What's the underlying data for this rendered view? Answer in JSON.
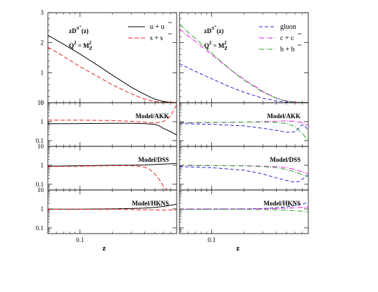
{
  "chart_data": {
    "type": "line",
    "xlabel": "z",
    "x_scale": "log",
    "xlim": [
      0.05,
      0.8
    ],
    "x_tick_labels": [
      "0.1"
    ],
    "columns": [
      {
        "id": "left",
        "top_panel": {
          "ylim": [
            0,
            3
          ],
          "y_tick_labels": [
            "0",
            "1",
            "2",
            "3"
          ],
          "annotation_line1": "zD^{π⁺}(z)",
          "annotation_main": "zD",
          "annotation_sup": "π",
          "annotation_supsup": "+",
          "annotation_arg": "(z)",
          "annotation_q_base": "Q",
          "annotation_q_exp": "2",
          "annotation_q_eq": " = M",
          "annotation_q_sub": "Z",
          "annotation_q_exp2": "2",
          "series": [
            {
              "name": "u + ū",
              "name_base": "u + u",
              "name_bar": "u",
              "color": "#000000",
              "dash": "",
              "x": [
                0.05,
                0.07,
                0.1,
                0.15,
                0.2,
                0.3,
                0.4,
                0.5,
                0.6,
                0.7,
                0.8
              ],
              "y": [
                2.25,
                1.95,
                1.62,
                1.22,
                0.92,
                0.52,
                0.28,
                0.12,
                0.04,
                0.01,
                0.0
              ]
            },
            {
              "name": "s + s̄",
              "name_base": "s + s",
              "name_bar": "s",
              "color": "#e8261f",
              "dash": "6,3",
              "x": [
                0.05,
                0.07,
                0.1,
                0.15,
                0.2,
                0.3,
                0.4,
                0.5,
                0.6,
                0.7,
                0.8
              ],
              "y": [
                1.85,
                1.55,
                1.2,
                0.85,
                0.6,
                0.3,
                0.12,
                0.04,
                0.01,
                0.0,
                0.0
              ]
            }
          ]
        },
        "ratio_panels": [
          {
            "label": "Model/AKK",
            "ylim": [
              0.05,
              10
            ],
            "y_tick_labels": [
              "0.1",
              "1",
              "10"
            ],
            "series": [
              {
                "color": "#000000",
                "dash": "",
                "x": [
                  0.05,
                  0.1,
                  0.2,
                  0.3,
                  0.4,
                  0.5,
                  0.55,
                  0.6,
                  0.7,
                  0.8
                ],
                "y": [
                  0.78,
                  0.8,
                  0.82,
                  0.82,
                  0.8,
                  0.72,
                  0.6,
                  0.45,
                  0.3,
                  0.2
                ]
              },
              {
                "color": "#e8261f",
                "dash": "6,3",
                "x": [
                  0.05,
                  0.1,
                  0.2,
                  0.3,
                  0.4,
                  0.5,
                  0.6,
                  0.7,
                  0.75,
                  0.8
                ],
                "y": [
                  1.2,
                  1.2,
                  1.15,
                  1.05,
                  0.95,
                  0.85,
                  1.0,
                  2.0,
                  4.0,
                  8.0
                ]
              }
            ]
          },
          {
            "label": "Model/DSS",
            "ylim": [
              0.05,
              10
            ],
            "y_tick_labels": [
              "0.1",
              "1",
              "10"
            ],
            "series": [
              {
                "color": "#000000",
                "dash": "",
                "x": [
                  0.05,
                  0.1,
                  0.2,
                  0.3,
                  0.4,
                  0.5,
                  0.6,
                  0.7,
                  0.8
                ],
                "y": [
                  0.9,
                  0.95,
                  1.0,
                  1.02,
                  1.05,
                  1.1,
                  1.15,
                  1.2,
                  1.25
                ]
              },
              {
                "color": "#e8261f",
                "dash": "6,3",
                "x": [
                  0.05,
                  0.1,
                  0.2,
                  0.3,
                  0.35,
                  0.4,
                  0.45,
                  0.5,
                  0.55,
                  0.6,
                  0.65
                ],
                "y": [
                  0.85,
                  0.9,
                  0.95,
                  0.95,
                  0.9,
                  0.8,
                  0.6,
                  0.35,
                  0.18,
                  0.08,
                  0.05
                ]
              }
            ]
          },
          {
            "label": "Model/HKNS",
            "ylim": [
              0.05,
              10
            ],
            "y_tick_labels": [
              "0.1",
              "1",
              "10"
            ],
            "series": [
              {
                "color": "#000000",
                "dash": "",
                "x": [
                  0.05,
                  0.1,
                  0.2,
                  0.3,
                  0.4,
                  0.5,
                  0.6,
                  0.7,
                  0.8
                ],
                "y": [
                  0.98,
                  0.98,
                  1.0,
                  1.05,
                  1.1,
                  1.2,
                  1.35,
                  1.55,
                  1.8
                ]
              },
              {
                "color": "#e8261f",
                "dash": "6,3",
                "x": [
                  0.05,
                  0.1,
                  0.2,
                  0.3,
                  0.4,
                  0.5,
                  0.6,
                  0.7,
                  0.8
                ],
                "y": [
                  0.95,
                  0.95,
                  0.95,
                  0.93,
                  0.9,
                  0.88,
                  0.87,
                  0.88,
                  0.9
                ]
              }
            ]
          }
        ]
      },
      {
        "id": "right",
        "top_panel": {
          "ylim": [
            0,
            3
          ],
          "y_tick_labels": [],
          "annotation_line1": "zD^{π⁺}(z)",
          "annotation_main": "zD",
          "annotation_sup": "π",
          "annotation_supsup": "+",
          "annotation_arg": "(z)",
          "annotation_q_base": "Q",
          "annotation_q_exp": "2",
          "annotation_q_eq": " = M",
          "annotation_q_sub": "Z",
          "annotation_q_exp2": "2",
          "series": [
            {
              "name": "gluon",
              "name_base": "gluon",
              "name_bar": "",
              "color": "#2a2ad4",
              "dash": "5,3",
              "x": [
                0.05,
                0.07,
                0.1,
                0.15,
                0.2,
                0.3,
                0.4,
                0.5,
                0.6,
                0.7,
                0.8
              ],
              "y": [
                1.3,
                1.05,
                0.8,
                0.52,
                0.35,
                0.15,
                0.06,
                0.02,
                0.005,
                0.0,
                0.0
              ]
            },
            {
              "name": "c + c̄",
              "name_base": "c + c",
              "name_bar": "c",
              "color": "#e020e0",
              "dash": "7,2,1,2",
              "x": [
                0.05,
                0.07,
                0.1,
                0.15,
                0.2,
                0.3,
                0.4,
                0.5,
                0.6,
                0.7,
                0.8
              ],
              "y": [
                2.45,
                2.05,
                1.6,
                1.1,
                0.78,
                0.38,
                0.16,
                0.06,
                0.02,
                0.005,
                0.0
              ]
            },
            {
              "name": "b + b̄",
              "name_base": "b + b",
              "name_bar": "b",
              "color": "#2ca02c",
              "dash": "7,2,1,2",
              "x": [
                0.05,
                0.07,
                0.1,
                0.15,
                0.2,
                0.3,
                0.4,
                0.5,
                0.6,
                0.7,
                0.8
              ],
              "y": [
                2.6,
                2.15,
                1.65,
                1.1,
                0.75,
                0.35,
                0.15,
                0.05,
                0.015,
                0.004,
                0.0
              ]
            }
          ]
        },
        "ratio_panels": [
          {
            "label": "Model/AKK",
            "ylim": [
              0.05,
              10
            ],
            "y_tick_labels": [],
            "series": [
              {
                "color": "#2a2ad4",
                "dash": "5,3",
                "x": [
                  0.05,
                  0.1,
                  0.2,
                  0.3,
                  0.4,
                  0.5,
                  0.55,
                  0.6,
                  0.65,
                  0.7,
                  0.75,
                  0.8
                ],
                "y": [
                  0.8,
                  0.72,
                  0.6,
                  0.45,
                  0.35,
                  0.28,
                  0.27,
                  0.3,
                  0.45,
                  0.7,
                  0.55,
                  0.35
                ]
              },
              {
                "color": "#e020e0",
                "dash": "7,2,1,2",
                "x": [
                  0.05,
                  0.1,
                  0.2,
                  0.3,
                  0.4,
                  0.5,
                  0.6,
                  0.7,
                  0.8
                ],
                "y": [
                  0.85,
                  0.9,
                  0.95,
                  1.0,
                  1.05,
                  1.1,
                  1.05,
                  0.9,
                  0.6
                ]
              },
              {
                "color": "#2ca02c",
                "dash": "7,2,1,2",
                "x": [
                  0.05,
                  0.1,
                  0.2,
                  0.3,
                  0.4,
                  0.5,
                  0.6,
                  0.7,
                  0.8
                ],
                "y": [
                  0.9,
                  0.92,
                  0.95,
                  0.95,
                  0.9,
                  0.8,
                  0.55,
                  0.25,
                  0.1
                ]
              }
            ]
          },
          {
            "label": "Model/DSS",
            "ylim": [
              0.05,
              10
            ],
            "y_tick_labels": [],
            "series": [
              {
                "color": "#2a2ad4",
                "dash": "5,3",
                "x": [
                  0.05,
                  0.1,
                  0.2,
                  0.3,
                  0.4,
                  0.5,
                  0.55,
                  0.6,
                  0.65,
                  0.7,
                  0.75,
                  0.8
                ],
                "y": [
                  0.85,
                  0.75,
                  0.55,
                  0.35,
                  0.22,
                  0.16,
                  0.14,
                  0.13,
                  0.14,
                  0.18,
                  0.25,
                  0.3
                ]
              },
              {
                "color": "#e020e0",
                "dash": "7,2,1,2",
                "x": [
                  0.05,
                  0.1,
                  0.2,
                  0.3,
                  0.4,
                  0.5,
                  0.6,
                  0.7,
                  0.8
                ],
                "y": [
                  0.95,
                  0.95,
                  0.95,
                  0.9,
                  0.85,
                  0.75,
                  0.6,
                  0.45,
                  0.35
                ]
              },
              {
                "color": "#2ca02c",
                "dash": "7,2,1,2",
                "x": [
                  0.05,
                  0.1,
                  0.2,
                  0.3,
                  0.4,
                  0.5,
                  0.6,
                  0.7,
                  0.8
                ],
                "y": [
                  1.0,
                  0.98,
                  0.92,
                  0.85,
                  0.75,
                  0.6,
                  0.45,
                  0.32,
                  0.25
                ]
              }
            ]
          },
          {
            "label": "Model/HKNS",
            "ylim": [
              0.05,
              10
            ],
            "y_tick_labels": [],
            "series": [
              {
                "color": "#2a2ad4",
                "dash": "5,3",
                "x": [
                  0.05,
                  0.1,
                  0.2,
                  0.3,
                  0.4,
                  0.5,
                  0.6,
                  0.7,
                  0.8
                ],
                "y": [
                  0.95,
                  0.98,
                  1.0,
                  1.05,
                  1.15,
                  1.3,
                  1.5,
                  1.8,
                  2.2
                ]
              },
              {
                "color": "#e020e0",
                "dash": "7,2,1,2",
                "x": [
                  0.05,
                  0.1,
                  0.2,
                  0.3,
                  0.4,
                  0.5,
                  0.6,
                  0.7,
                  0.8
                ],
                "y": [
                  1.0,
                  1.0,
                  1.0,
                  1.02,
                  1.05,
                  1.1,
                  1.15,
                  1.2,
                  1.25
                ]
              },
              {
                "color": "#2ca02c",
                "dash": "7,2,1,2",
                "x": [
                  0.05,
                  0.1,
                  0.2,
                  0.3,
                  0.4,
                  0.5,
                  0.6,
                  0.7,
                  0.8
                ],
                "y": [
                  0.95,
                  0.95,
                  0.95,
                  0.92,
                  0.9,
                  0.85,
                  0.8,
                  0.75,
                  0.7
                ]
              }
            ]
          }
        ]
      }
    ]
  }
}
